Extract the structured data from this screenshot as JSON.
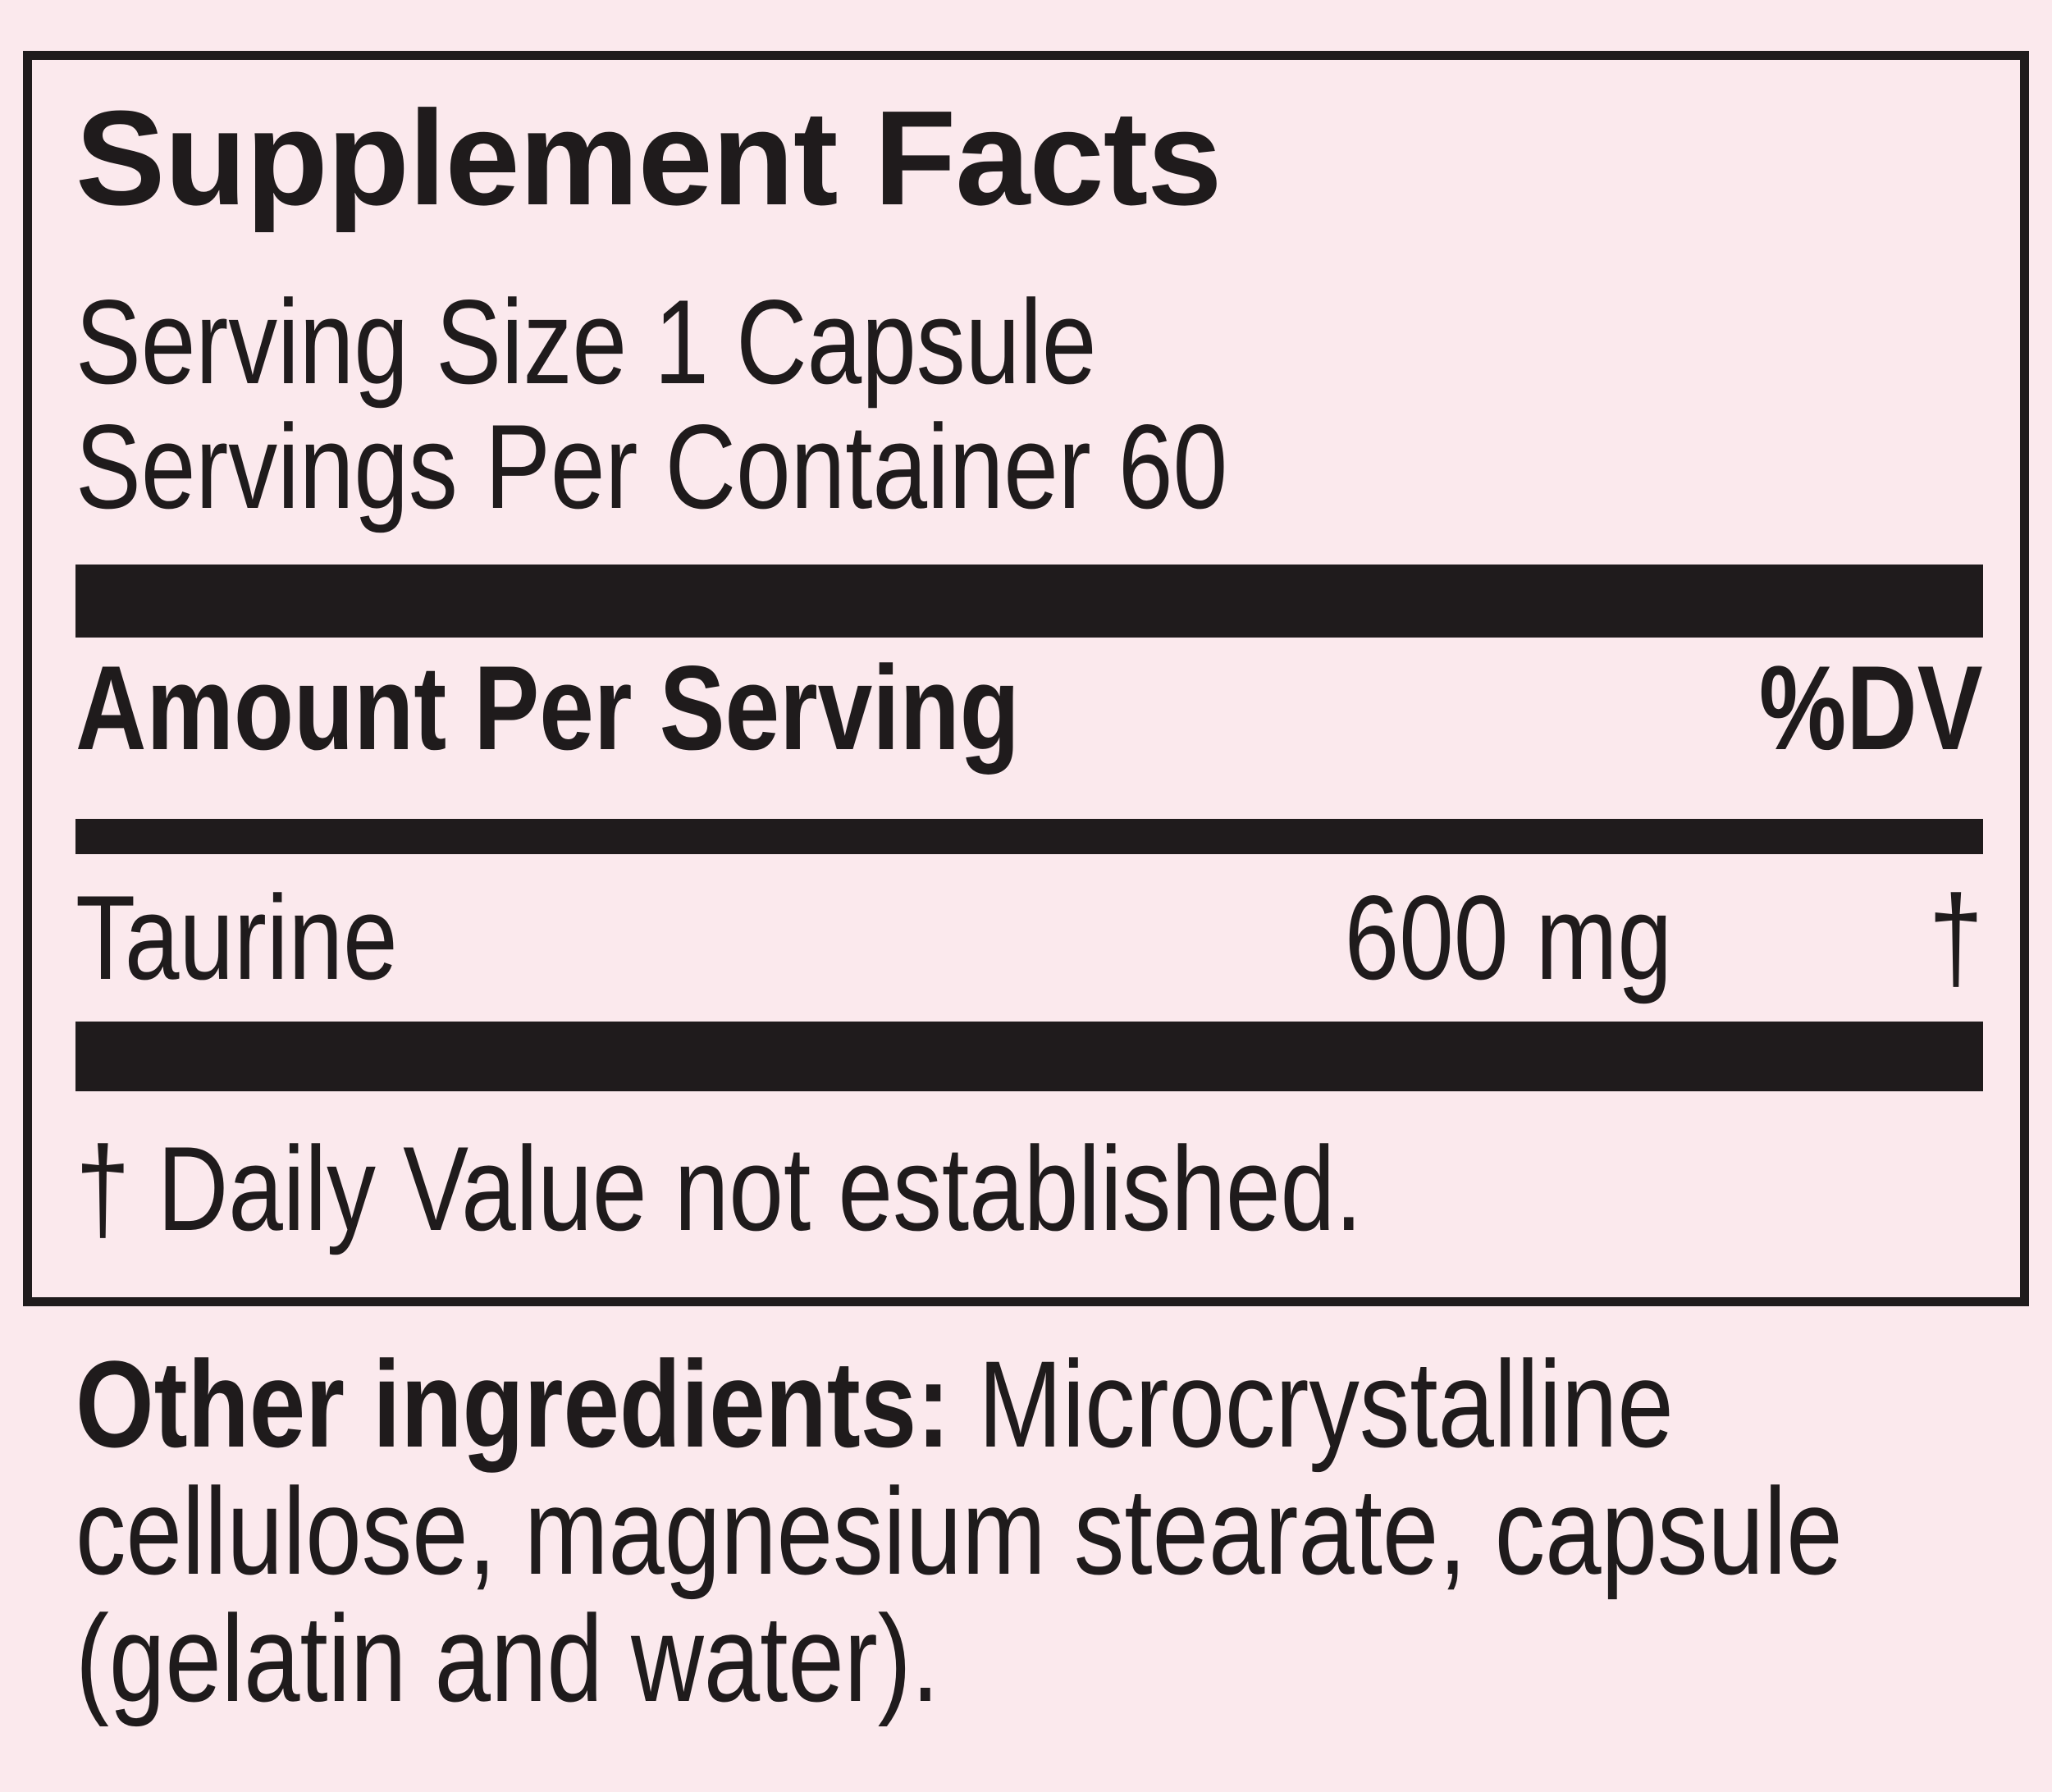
{
  "colors": {
    "background": "#fbe9ed",
    "ink": "#1f1b1c"
  },
  "panel": {
    "title": "Supplement Facts",
    "serving_size": "Serving Size 1 Capsule",
    "servings_per_container": "Servings Per Container 60",
    "amount_header": "Amount Per Serving",
    "dv_header": "%DV",
    "rows": [
      {
        "name": "Taurine",
        "amount": "600 mg",
        "dv": "†"
      }
    ],
    "footnote": "† Daily Value not established."
  },
  "other_ingredients": {
    "line1_bold": "Other ingredients:",
    "line1_rest": " Microcrystalline",
    "line2": "cellulose, magnesium stearate, capsule",
    "line3": "(gelatin and water)."
  }
}
